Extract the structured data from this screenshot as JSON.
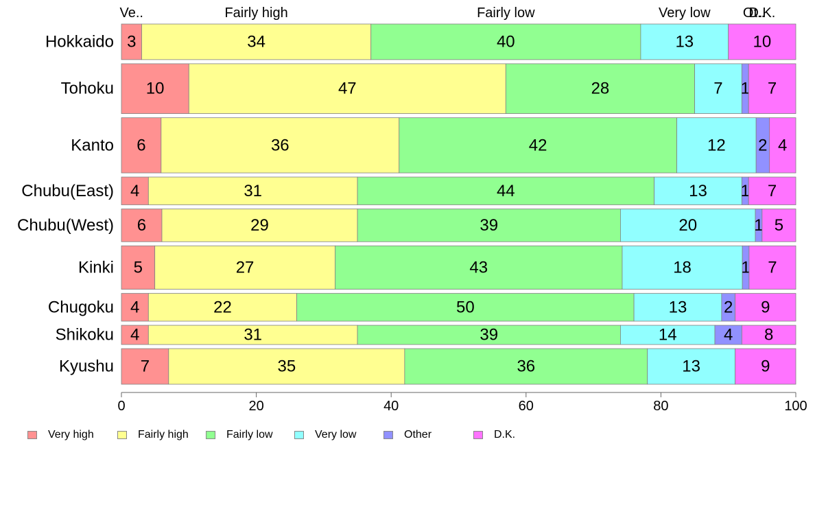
{
  "chart_data": {
    "type": "bar",
    "orientation": "horizontal",
    "stacked": true,
    "categories": [
      "Hokkaido",
      "Tohoku",
      "Kanto",
      "Chubu(East)",
      "Chubu(West)",
      "Kinki",
      "Chugoku",
      "Shikoku",
      "Kyushu"
    ],
    "series": [
      {
        "name": "Very high",
        "color": "#ff9191",
        "values": [
          3,
          10,
          6,
          4,
          6,
          5,
          4,
          4,
          7
        ]
      },
      {
        "name": "Fairly high",
        "color": "#ffff91",
        "values": [
          34,
          47,
          36,
          31,
          29,
          27,
          22,
          31,
          35
        ]
      },
      {
        "name": "Fairly low",
        "color": "#91ff91",
        "values": [
          40,
          28,
          42,
          44,
          39,
          43,
          50,
          39,
          36
        ]
      },
      {
        "name": "Very low",
        "color": "#91ffff",
        "values": [
          13,
          7,
          12,
          13,
          20,
          18,
          13,
          14,
          13
        ]
      },
      {
        "name": "Other",
        "color": "#9191ff",
        "values": [
          0,
          1,
          2,
          1,
          1,
          1,
          2,
          4,
          0
        ]
      },
      {
        "name": "D.K.",
        "color": "#ff73ff",
        "values": [
          10,
          7,
          4,
          7,
          5,
          7,
          9,
          8,
          9
        ]
      }
    ],
    "data_labels": [
      [
        "3",
        "34",
        "40",
        "13",
        "",
        "10"
      ],
      [
        "10",
        "47",
        "28",
        "7",
        "1",
        "7"
      ],
      [
        "6",
        "36",
        "42",
        "12",
        "2",
        "4"
      ],
      [
        "4",
        "31",
        "44",
        "13",
        "1",
        "7"
      ],
      [
        "6",
        "29",
        "39",
        "20",
        "1",
        "5"
      ],
      [
        "5",
        "27",
        "43",
        "18",
        "1",
        "7"
      ],
      [
        "4",
        "22",
        "50",
        "13",
        "2",
        "9"
      ],
      [
        "4",
        "31",
        "39",
        "14",
        "4",
        "8"
      ],
      [
        "7",
        "35",
        "36",
        "13",
        "",
        "9"
      ]
    ],
    "relative_row_widths": [
      1.0,
      1.4,
      1.55,
      0.78,
      0.92,
      1.22,
      0.78,
      0.54,
      1.0
    ],
    "top_labels": [
      "Ve..",
      "Fairly high",
      "Fairly low",
      "Very low",
      "Ot..",
      "D.K."
    ],
    "x_ticks": [
      "0",
      "20",
      "40",
      "60",
      "80",
      "100"
    ],
    "xlim": [
      0,
      100
    ],
    "grid": false,
    "legend_position": "bottom"
  },
  "legend": {
    "items": [
      {
        "label": "Very high",
        "color": "#ff9191"
      },
      {
        "label": "Fairly high",
        "color": "#ffff91"
      },
      {
        "label": "Fairly low",
        "color": "#91ff91"
      },
      {
        "label": "Very low",
        "color": "#91ffff"
      },
      {
        "label": "Other",
        "color": "#9191ff"
      },
      {
        "label": "D.K.",
        "color": "#ff73ff"
      }
    ]
  }
}
